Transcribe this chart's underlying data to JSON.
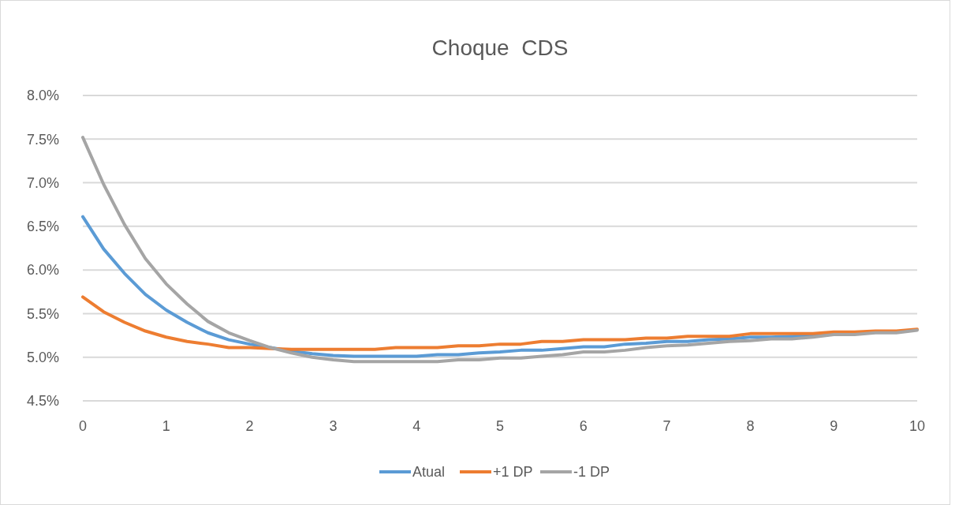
{
  "chart_data": {
    "type": "line",
    "title": "Choque  CDS",
    "x": [
      0,
      0.25,
      0.5,
      0.75,
      1,
      1.25,
      1.5,
      1.75,
      2,
      2.25,
      2.5,
      2.75,
      3,
      3.25,
      3.5,
      3.75,
      4,
      4.25,
      4.5,
      4.75,
      5,
      5.25,
      5.5,
      5.75,
      6,
      6.25,
      6.5,
      6.75,
      7,
      7.25,
      7.5,
      7.75,
      8,
      8.25,
      8.5,
      8.75,
      9,
      9.25,
      9.5,
      9.75,
      10
    ],
    "series": [
      {
        "name": "Atual",
        "color": "#5b9bd5",
        "values": [
          6.61,
          6.24,
          5.96,
          5.72,
          5.54,
          5.4,
          5.28,
          5.2,
          5.15,
          5.11,
          5.07,
          5.04,
          5.02,
          5.01,
          5.01,
          5.01,
          5.01,
          5.03,
          5.03,
          5.05,
          5.06,
          5.08,
          5.08,
          5.1,
          5.12,
          5.12,
          5.15,
          5.16,
          5.18,
          5.18,
          5.2,
          5.21,
          5.23,
          5.23,
          5.24,
          5.25,
          5.27,
          null,
          null,
          null,
          null
        ]
      },
      {
        "name": "+1 DP",
        "color": "#ed7d31",
        "values": [
          5.69,
          5.52,
          5.4,
          5.3,
          5.23,
          5.18,
          5.15,
          5.11,
          5.11,
          5.1,
          5.09,
          5.09,
          5.09,
          5.09,
          5.09,
          5.11,
          5.11,
          5.11,
          5.13,
          5.13,
          5.15,
          5.15,
          5.18,
          5.18,
          5.2,
          5.2,
          5.2,
          5.22,
          5.22,
          5.24,
          5.24,
          5.24,
          5.27,
          5.27,
          5.27,
          5.27,
          5.29,
          5.29,
          5.3,
          5.3,
          5.32
        ]
      },
      {
        "name": "-1 DP",
        "color": "#a5a5a5",
        "values": [
          7.52,
          6.98,
          6.52,
          6.13,
          5.84,
          5.61,
          5.41,
          5.28,
          5.19,
          5.11,
          5.05,
          5.0,
          4.97,
          4.95,
          4.95,
          4.95,
          4.95,
          4.95,
          4.97,
          4.97,
          4.99,
          4.99,
          5.01,
          5.03,
          5.06,
          5.06,
          5.08,
          5.11,
          5.13,
          5.14,
          5.16,
          5.18,
          5.19,
          5.21,
          5.21,
          5.23,
          5.26,
          5.26,
          5.28,
          5.28,
          5.31
        ]
      }
    ],
    "xlim": [
      0,
      10
    ],
    "xticks": [
      0,
      1,
      2,
      3,
      4,
      5,
      6,
      7,
      8,
      9,
      10
    ],
    "ylim": [
      4.5,
      8.0
    ],
    "yticks": [
      {
        "value": 4.5,
        "label": "4.5%"
      },
      {
        "value": 5.0,
        "label": "5.0%"
      },
      {
        "value": 5.5,
        "label": "5.5%"
      },
      {
        "value": 6.0,
        "label": "6.0%"
      },
      {
        "value": 6.5,
        "label": "6.5%"
      },
      {
        "value": 7.0,
        "label": "7.0%"
      },
      {
        "value": 7.5,
        "label": "7.5%"
      },
      {
        "value": 8.0,
        "label": "8.0%"
      }
    ],
    "grid": "y",
    "legend": "bottom",
    "marker": "none",
    "line_style": "solid"
  }
}
